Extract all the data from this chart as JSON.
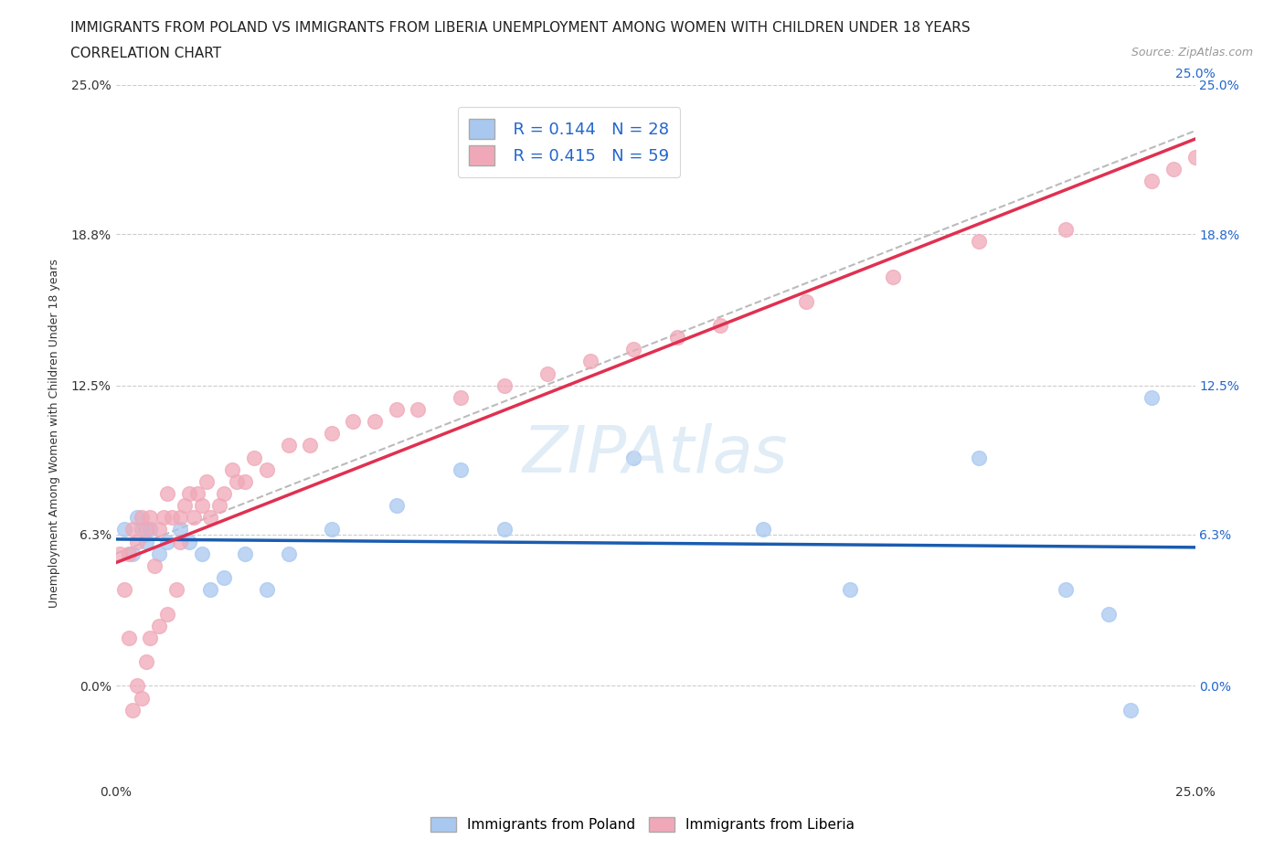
{
  "title_line1": "IMMIGRANTS FROM POLAND VS IMMIGRANTS FROM LIBERIA UNEMPLOYMENT AMONG WOMEN WITH CHILDREN UNDER 18 YEARS",
  "title_line2": "CORRELATION CHART",
  "source_text": "Source: ZipAtlas.com",
  "ylabel": "Unemployment Among Women with Children Under 18 years",
  "watermark": "ZIPAtlas",
  "xmin": 0.0,
  "xmax": 0.25,
  "ymin": -0.04,
  "ymax": 0.25,
  "ytick_vals": [
    0.0,
    0.063,
    0.125,
    0.188,
    0.25
  ],
  "ytick_labels": [
    "0.0%",
    "6.3%",
    "12.5%",
    "18.8%",
    "25.0%"
  ],
  "xtick_vals": [
    0.0,
    0.25
  ],
  "xtick_labels": [
    "0.0%",
    "25.0%"
  ],
  "poland_R": 0.144,
  "poland_N": 28,
  "liberia_R": 0.415,
  "liberia_N": 59,
  "poland_color": "#a8c8f0",
  "liberia_color": "#f0a8b8",
  "poland_line_color": "#1a5cb0",
  "liberia_line_color": "#e03050",
  "poland_x": [
    0.002,
    0.004,
    0.005,
    0.006,
    0.007,
    0.008,
    0.01,
    0.012,
    0.015,
    0.017,
    0.02,
    0.022,
    0.025,
    0.03,
    0.035,
    0.04,
    0.05,
    0.065,
    0.08,
    0.09,
    0.12,
    0.15,
    0.17,
    0.2,
    0.22,
    0.23,
    0.235,
    0.24
  ],
  "poland_y": [
    0.065,
    0.055,
    0.07,
    0.065,
    0.06,
    0.065,
    0.055,
    0.06,
    0.065,
    0.06,
    0.055,
    0.04,
    0.045,
    0.055,
    0.04,
    0.055,
    0.065,
    0.075,
    0.09,
    0.065,
    0.095,
    0.065,
    0.04,
    0.095,
    0.04,
    0.03,
    -0.01,
    0.12
  ],
  "liberia_x": [
    0.001,
    0.002,
    0.003,
    0.003,
    0.004,
    0.004,
    0.005,
    0.005,
    0.006,
    0.006,
    0.007,
    0.007,
    0.008,
    0.008,
    0.009,
    0.01,
    0.01,
    0.011,
    0.012,
    0.012,
    0.013,
    0.014,
    0.015,
    0.015,
    0.016,
    0.017,
    0.018,
    0.019,
    0.02,
    0.021,
    0.022,
    0.024,
    0.025,
    0.027,
    0.028,
    0.03,
    0.032,
    0.035,
    0.04,
    0.045,
    0.05,
    0.055,
    0.06,
    0.065,
    0.07,
    0.08,
    0.09,
    0.1,
    0.11,
    0.12,
    0.14,
    0.16,
    0.18,
    0.2,
    0.22,
    0.24,
    0.245,
    0.25,
    0.13
  ],
  "liberia_y": [
    0.055,
    0.04,
    0.02,
    0.055,
    -0.01,
    0.065,
    0.0,
    0.06,
    -0.005,
    0.07,
    0.01,
    0.065,
    0.02,
    0.07,
    0.05,
    0.025,
    0.065,
    0.07,
    0.03,
    0.08,
    0.07,
    0.04,
    0.06,
    0.07,
    0.075,
    0.08,
    0.07,
    0.08,
    0.075,
    0.085,
    0.07,
    0.075,
    0.08,
    0.09,
    0.085,
    0.085,
    0.095,
    0.09,
    0.1,
    0.1,
    0.105,
    0.11,
    0.11,
    0.115,
    0.115,
    0.12,
    0.125,
    0.13,
    0.135,
    0.14,
    0.15,
    0.16,
    0.17,
    0.185,
    0.19,
    0.21,
    0.215,
    0.22,
    0.145
  ],
  "background_color": "#ffffff",
  "grid_color": "#cccccc",
  "title_fontsize": 11,
  "tick_fontsize": 10,
  "right_tick_color": "#2266cc"
}
